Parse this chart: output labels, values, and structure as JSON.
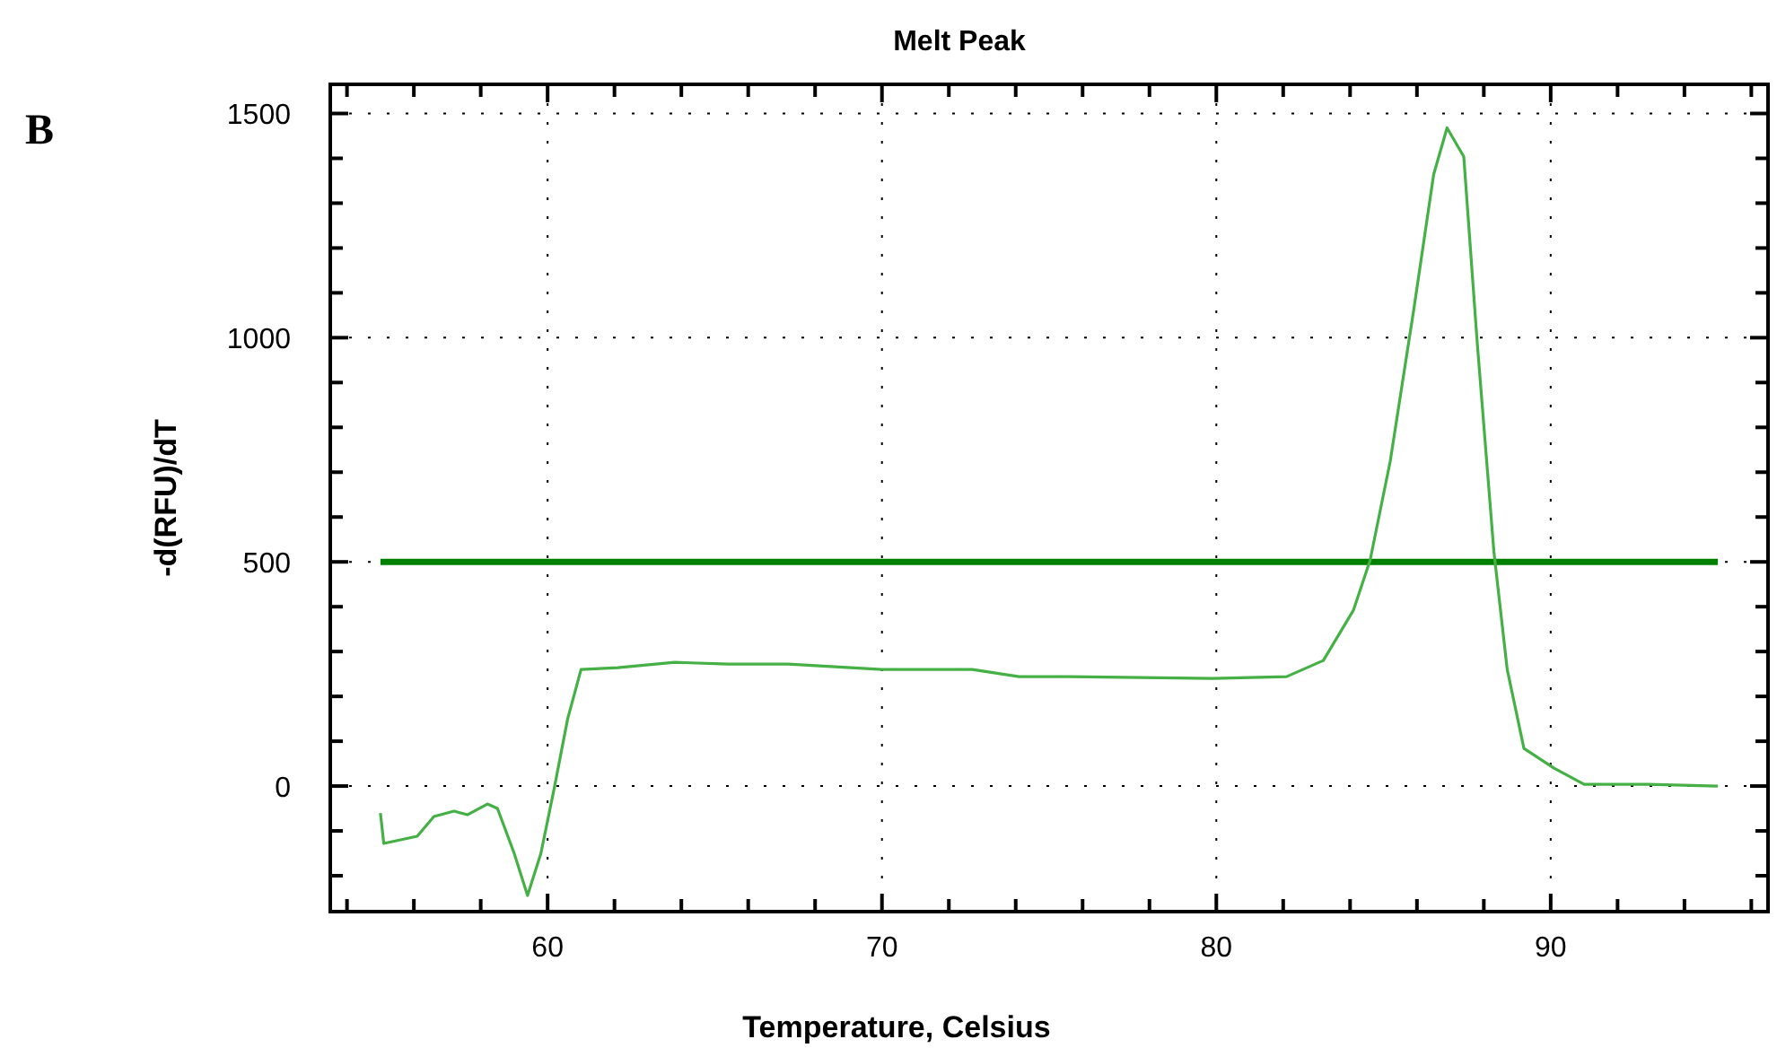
{
  "chart_data": {
    "type": "line",
    "title": "Melt Peak",
    "xlabel": "Temperature, Celsius",
    "ylabel": "-d(RFU)/dT",
    "annotations": [
      "B"
    ],
    "xlim": [
      53.5,
      96.5
    ],
    "ylim": [
      -280,
      1565
    ],
    "xticks": [
      {
        "value": 54,
        "label": null
      },
      {
        "value": 56,
        "label": null
      },
      {
        "value": 58,
        "label": null
      },
      60,
      {
        "value": 62,
        "label": null
      },
      {
        "value": 64,
        "label": null
      },
      {
        "value": 66,
        "label": null
      },
      {
        "value": 68,
        "label": null
      },
      70,
      {
        "value": 72,
        "label": null
      },
      {
        "value": 74,
        "label": null
      },
      {
        "value": 76,
        "label": null
      },
      {
        "value": 78,
        "label": null
      },
      80,
      {
        "value": 82,
        "label": null
      },
      {
        "value": 84,
        "label": null
      },
      {
        "value": 86,
        "label": null
      },
      {
        "value": 88,
        "label": null
      },
      90,
      {
        "value": 92,
        "label": null
      },
      {
        "value": 94,
        "label": null
      },
      {
        "value": 96,
        "label": null
      }
    ],
    "yticks": [
      {
        "value": -200,
        "label": null
      },
      {
        "value": -100,
        "label": null
      },
      0,
      {
        "value": 100,
        "label": null
      },
      {
        "value": 200,
        "label": null
      },
      {
        "value": 300,
        "label": null
      },
      {
        "value": 400,
        "label": null
      },
      500,
      {
        "value": 600,
        "label": null
      },
      {
        "value": 700,
        "label": null
      },
      {
        "value": 800,
        "label": null
      },
      {
        "value": 900,
        "label": null
      },
      1000,
      {
        "value": 1100,
        "label": null
      },
      {
        "value": 1200,
        "label": null
      },
      {
        "value": 1300,
        "label": null
      },
      {
        "value": 1400,
        "label": null
      },
      1500
    ],
    "grid": true,
    "line_style": "solid",
    "ref_lines": [
      {
        "axis": "y",
        "value": 500,
        "color": "#008000"
      }
    ],
    "series": [
      {
        "color": "#45b045",
        "x": [
          55.0,
          55.1,
          56.1,
          56.6,
          57.2,
          57.6,
          58.2,
          58.5,
          59.0,
          59.4,
          59.8,
          60.2,
          60.6,
          61.0,
          62.1,
          63.8,
          65.4,
          67.2,
          70.0,
          72.7,
          74.1,
          75.6,
          79.9,
          82.1,
          83.2,
          84.1,
          84.6,
          85.2,
          85.9,
          86.5,
          86.9,
          87.4,
          87.8,
          88.3,
          88.7,
          89.2,
          90.1,
          91.0,
          92.9,
          95.0
        ],
        "values": [
          -60,
          -128,
          -112,
          -68,
          -56,
          -64,
          -40,
          -50,
          -150,
          -244,
          -150,
          -4,
          150,
          260,
          264,
          276,
          272,
          272,
          260,
          260,
          244,
          244,
          240,
          244,
          280,
          392,
          504,
          724,
          1060,
          1364,
          1468,
          1404,
          992,
          524,
          260,
          84,
          40,
          4,
          4,
          0
        ]
      }
    ]
  }
}
